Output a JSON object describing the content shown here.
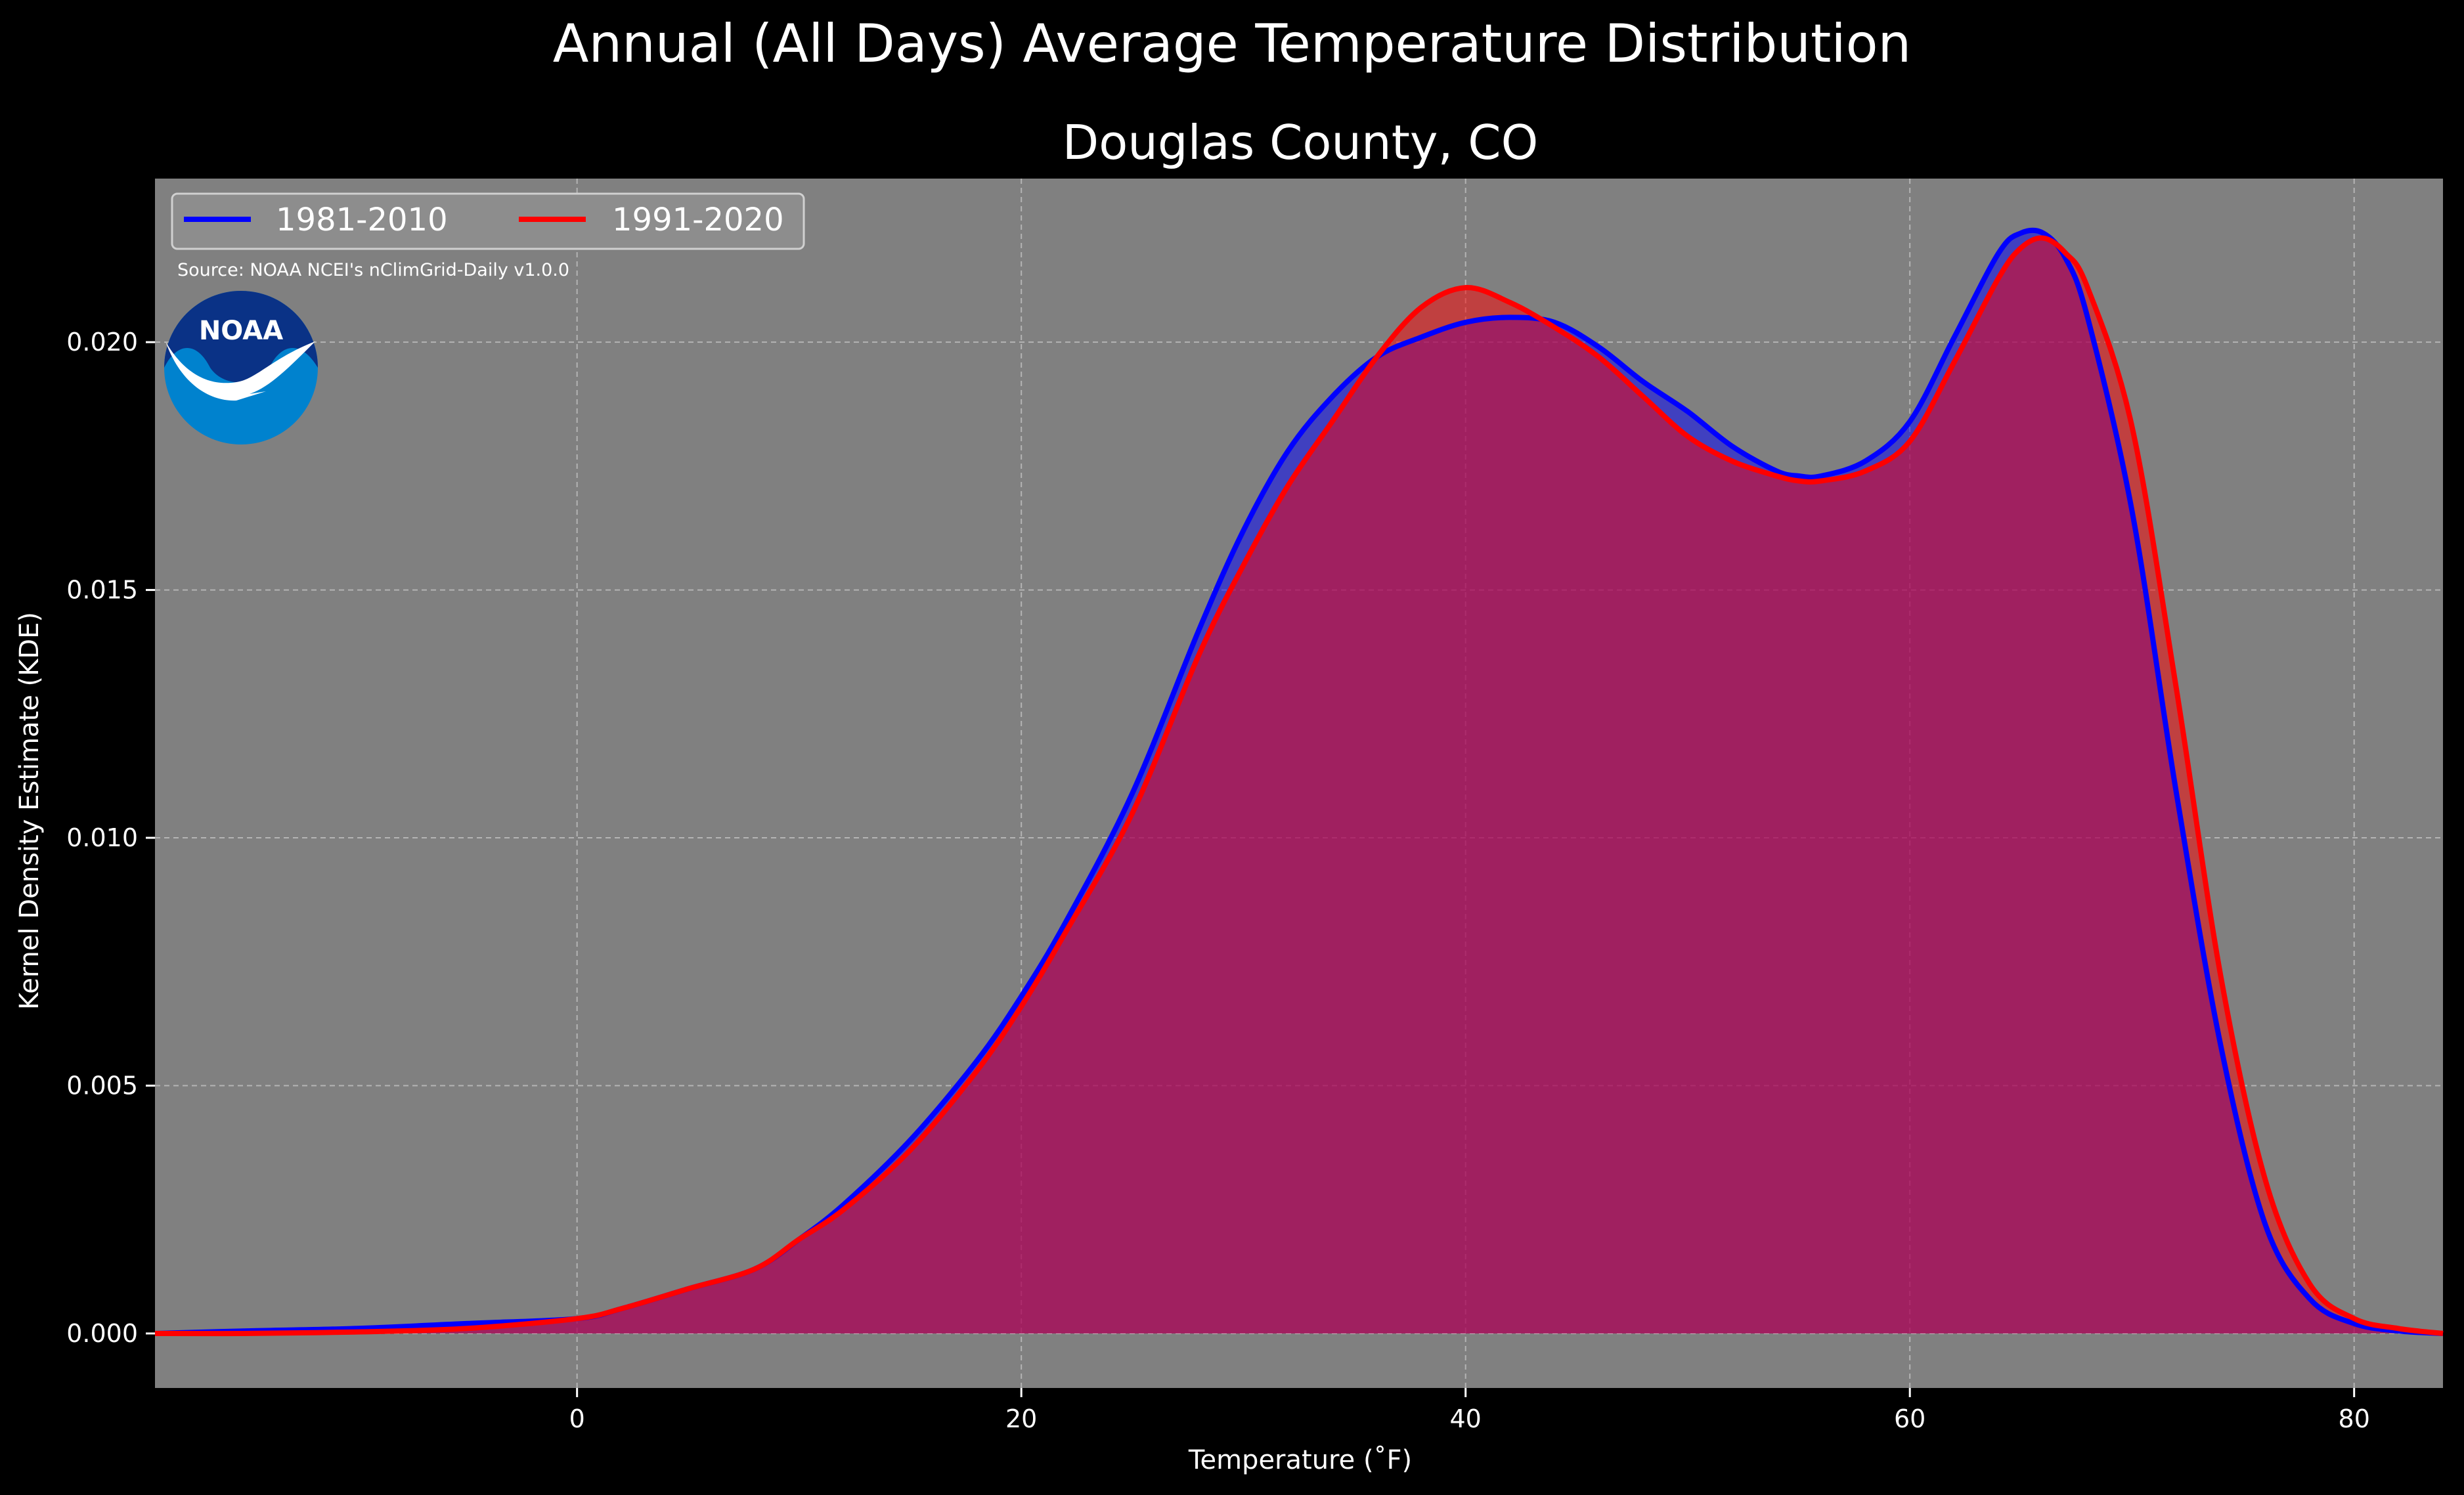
{
  "chart_data": {
    "type": "area",
    "title": "Annual (All Days) Average Temperature Distribution",
    "subtitle": "Douglas County, CO",
    "xlabel": "Temperature (˚F)",
    "ylabel": "Kernel Density Estimate (KDE)",
    "xlim": [
      -19,
      84
    ],
    "ylim": [
      -0.0011,
      0.0233
    ],
    "x_ticks": [
      0,
      20,
      40,
      60,
      80
    ],
    "y_ticks": [
      0.0,
      0.005,
      0.01,
      0.015,
      0.02
    ],
    "x_tick_labels": [
      "0",
      "20",
      "40",
      "60",
      "80"
    ],
    "y_tick_labels": [
      "0.000",
      "0.005",
      "0.010",
      "0.015",
      "0.020"
    ],
    "grid": true,
    "legend_position": "top-left",
    "source": "Source: NOAA NCEI's nClimGrid-Daily v1.0.0",
    "logo_text": "NOAA",
    "colors": {
      "figure_background": "#000000",
      "plot_background": "#808080",
      "grid": "#b4b4b4",
      "series_1": "#0000ff",
      "series_2": "#ff0000",
      "logo_dark": "#0a3286",
      "logo_light": "#0082ce"
    },
    "series": [
      {
        "name": "1981-2010",
        "color": "#0000ff",
        "x": [
          -19,
          -15,
          -10,
          -5,
          0,
          2,
          5,
          8,
          10,
          12,
          15,
          18,
          20,
          22,
          25,
          28,
          30,
          32,
          34,
          36,
          38,
          40,
          42,
          44,
          46,
          48,
          50,
          52,
          54,
          55,
          56,
          58,
          60,
          62,
          64,
          65,
          66,
          67,
          68,
          70,
          72,
          74,
          76,
          78,
          80,
          82,
          84
        ],
        "y": [
          0.0,
          5e-05,
          0.0001,
          0.0002,
          0.0003,
          0.0005,
          0.0009,
          0.0013,
          0.0019,
          0.0026,
          0.0039,
          0.0055,
          0.0068,
          0.0083,
          0.0109,
          0.0142,
          0.0162,
          0.0178,
          0.0189,
          0.0197,
          0.0201,
          0.0204,
          0.0205,
          0.0204,
          0.0199,
          0.0192,
          0.0186,
          0.0179,
          0.0174,
          0.0173,
          0.0173,
          0.0176,
          0.0184,
          0.0201,
          0.0218,
          0.0222,
          0.0222,
          0.0217,
          0.0205,
          0.0166,
          0.0109,
          0.0058,
          0.0022,
          0.0007,
          0.0002,
          5e-05,
          0.0
        ]
      },
      {
        "name": "1991-2020",
        "color": "#ff0000",
        "x": [
          -19,
          -15,
          -10,
          -5,
          0,
          2,
          5,
          8,
          10,
          12,
          15,
          18,
          20,
          22,
          25,
          28,
          30,
          32,
          34,
          36,
          38,
          40,
          42,
          44,
          46,
          48,
          50,
          52,
          54,
          55,
          56,
          58,
          60,
          62,
          64,
          65,
          66,
          67,
          68,
          70,
          72,
          74,
          76,
          78,
          80,
          82,
          84
        ],
        "y": [
          0.0,
          0.0,
          3e-05,
          0.0001,
          0.0003,
          0.0005,
          0.0009,
          0.0013,
          0.0019,
          0.0025,
          0.0037,
          0.0053,
          0.0066,
          0.0081,
          0.0105,
          0.0137,
          0.0155,
          0.0171,
          0.0184,
          0.0197,
          0.0207,
          0.0211,
          0.0208,
          0.0203,
          0.0197,
          0.0189,
          0.0181,
          0.0176,
          0.0173,
          0.0172,
          0.0172,
          0.0174,
          0.018,
          0.0196,
          0.0213,
          0.0219,
          0.0221,
          0.0218,
          0.0211,
          0.0183,
          0.013,
          0.0072,
          0.0031,
          0.001,
          0.0003,
          0.0001,
          0.0
        ]
      }
    ]
  }
}
